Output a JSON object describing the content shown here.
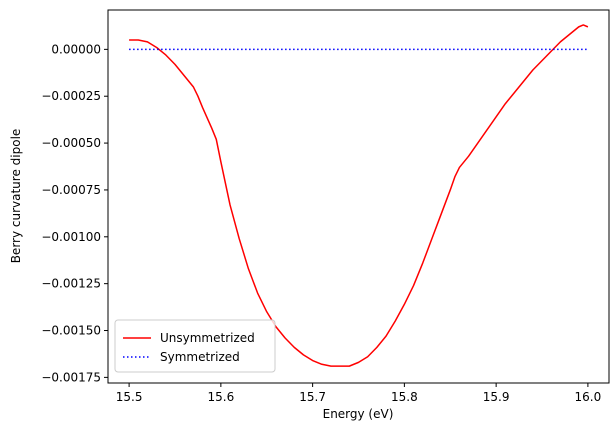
{
  "chart_data": {
    "type": "line",
    "xlabel": "Energy (eV)",
    "ylabel": "Berry curvature dipole",
    "xlim": [
      15.477,
      16.023
    ],
    "ylim": [
      -0.00178,
      0.00021
    ],
    "xticks": [
      15.5,
      15.6,
      15.7,
      15.8,
      15.9,
      16.0
    ],
    "xtick_labels": [
      "15.5",
      "15.6",
      "15.7",
      "15.8",
      "15.9",
      "16.0"
    ],
    "yticks": [
      0.0,
      -0.00025,
      -0.0005,
      -0.00075,
      -0.001,
      -0.00125,
      -0.0015,
      -0.00175
    ],
    "ytick_labels": [
      "0.00000",
      "−0.00025",
      "−0.00050",
      "−0.00075",
      "−0.00100",
      "−0.00125",
      "−0.00150",
      "−0.00175"
    ],
    "grid": false,
    "legend_position": "lower-left",
    "series": [
      {
        "name": "Unsymmetrized",
        "color": "#ff0000",
        "style": "solid",
        "x": [
          15.5,
          15.51,
          15.52,
          15.53,
          15.54,
          15.55,
          15.56,
          15.57,
          15.575,
          15.58,
          15.59,
          15.595,
          15.6,
          15.61,
          15.62,
          15.63,
          15.64,
          15.65,
          15.66,
          15.67,
          15.68,
          15.69,
          15.7,
          15.71,
          15.72,
          15.73,
          15.735,
          15.74,
          15.75,
          15.76,
          15.77,
          15.78,
          15.79,
          15.8,
          15.81,
          15.82,
          15.83,
          15.84,
          15.85,
          15.855,
          15.86,
          15.87,
          15.88,
          15.89,
          15.9,
          15.91,
          15.92,
          15.93,
          15.94,
          15.95,
          15.96,
          15.97,
          15.98,
          15.99,
          15.995,
          16.0
        ],
        "y": [
          5e-05,
          5e-05,
          4e-05,
          1e-05,
          -3e-05,
          -8e-05,
          -0.00014,
          -0.0002,
          -0.00025,
          -0.00031,
          -0.00042,
          -0.00048,
          -0.0006,
          -0.00083,
          -0.00101,
          -0.00117,
          -0.0013,
          -0.0014,
          -0.00148,
          -0.00154,
          -0.00159,
          -0.00163,
          -0.00166,
          -0.00168,
          -0.00169,
          -0.00169,
          -0.00169,
          -0.00169,
          -0.00167,
          -0.00164,
          -0.00159,
          -0.00153,
          -0.00145,
          -0.00136,
          -0.00126,
          -0.00114,
          -0.00101,
          -0.00088,
          -0.00075,
          -0.00068,
          -0.00063,
          -0.00057,
          -0.0005,
          -0.00043,
          -0.00036,
          -0.00029,
          -0.00023,
          -0.00017,
          -0.00011,
          -6e-05,
          -1e-05,
          4e-05,
          8e-05,
          0.00012,
          0.00013,
          0.00012
        ]
      },
      {
        "name": "Symmetrized",
        "color": "#0000ff",
        "style": "dotted",
        "x": [
          15.5,
          16.0
        ],
        "y": [
          0.0,
          0.0
        ]
      }
    ]
  }
}
